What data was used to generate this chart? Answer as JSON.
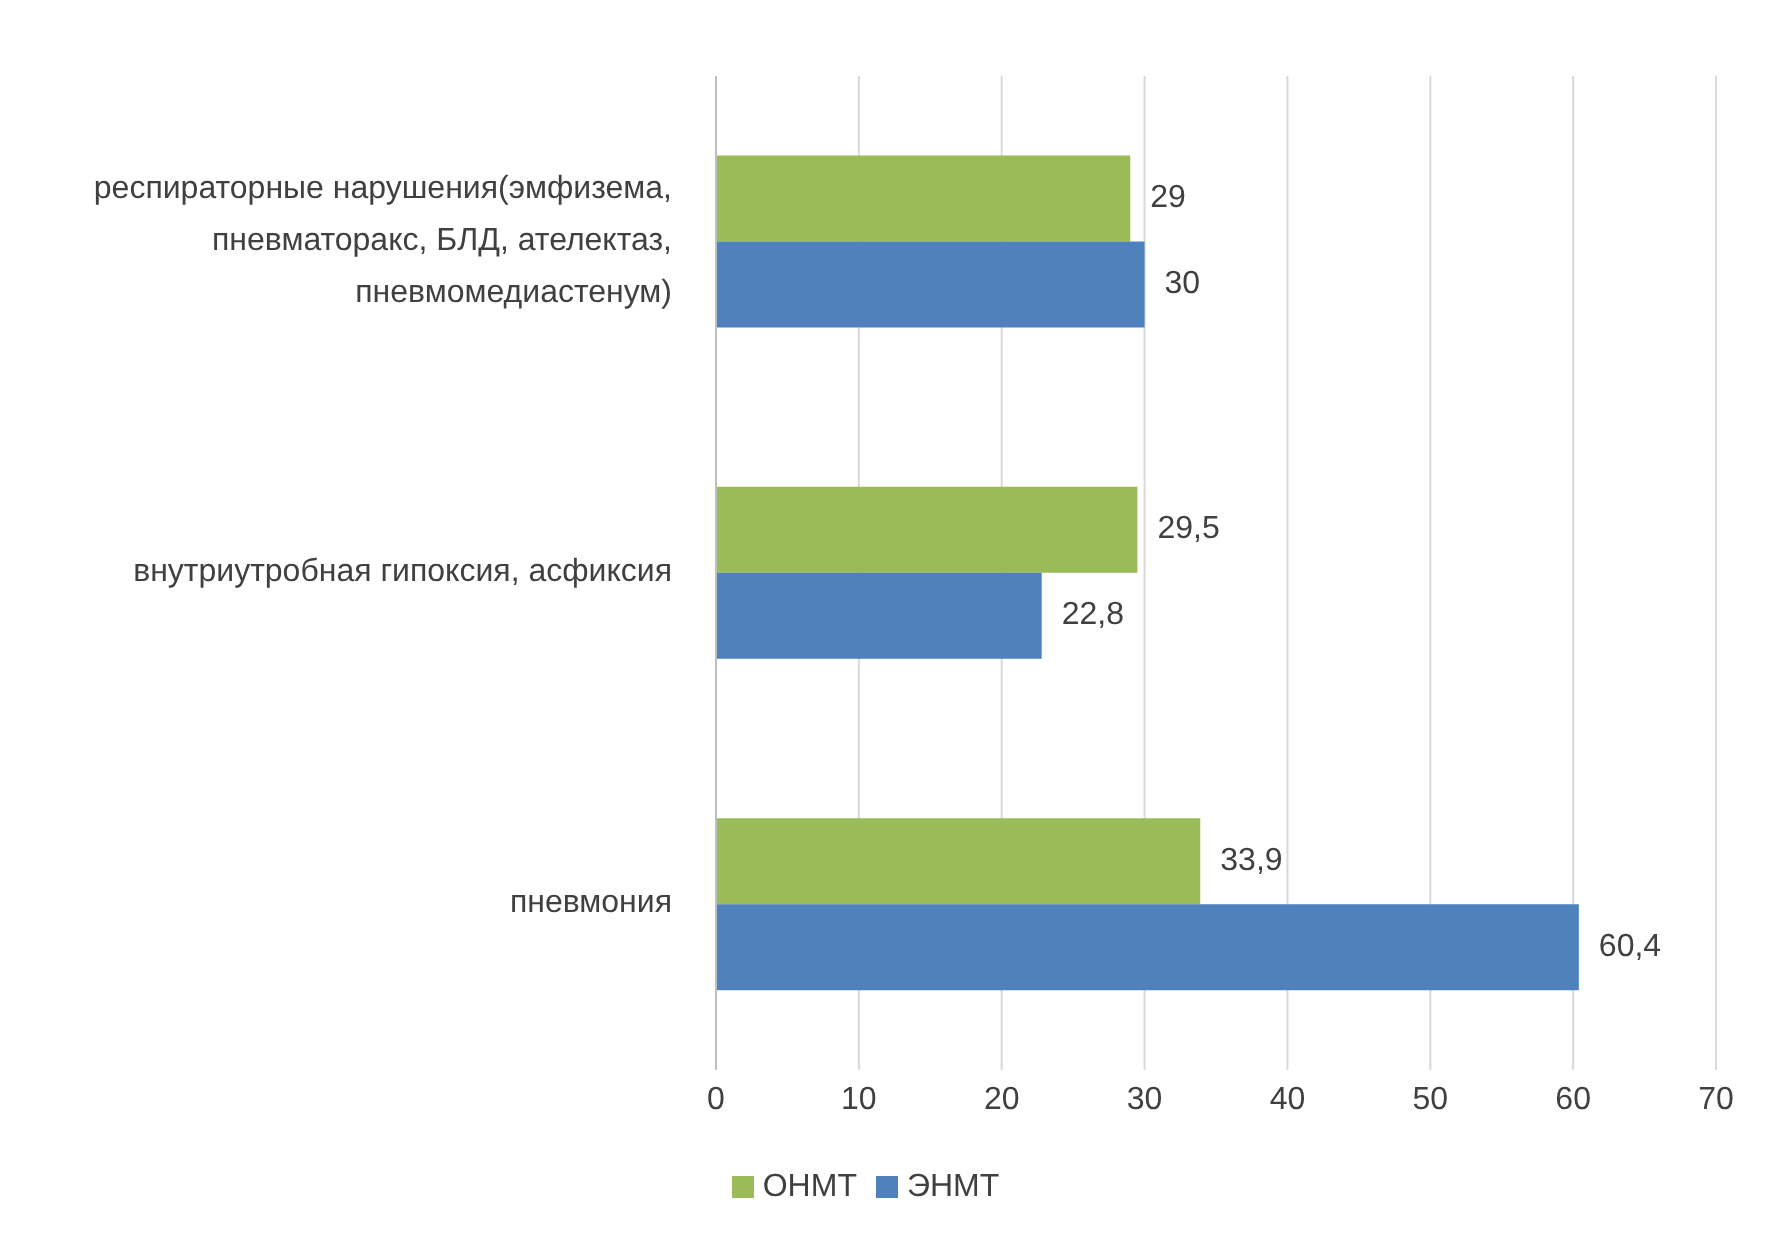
{
  "chart_data": {
    "type": "bar",
    "orientation": "horizontal",
    "categories": [
      "респираторные нарушения(эмфизема, пневматоракс, БЛД, ателектаз, пневмомедиастенум)",
      "внутриутробная гипоксия, асфиксия",
      "пневмония"
    ],
    "series": [
      {
        "name": "ОНМТ",
        "color": "#9bbb59",
        "values": [
          29,
          29.5,
          33.9
        ],
        "value_labels": [
          "29",
          "29,5",
          "33,9"
        ]
      },
      {
        "name": "ЭНМТ",
        "color": "#4f81bd",
        "values": [
          30,
          22.8,
          60.4
        ],
        "value_labels": [
          "30",
          "22,8",
          "60,4"
        ]
      }
    ],
    "xlim": [
      0,
      70
    ],
    "xticks": [
      0,
      10,
      20,
      30,
      40,
      50,
      60,
      70
    ],
    "grid": "x",
    "legend": "bottom"
  }
}
